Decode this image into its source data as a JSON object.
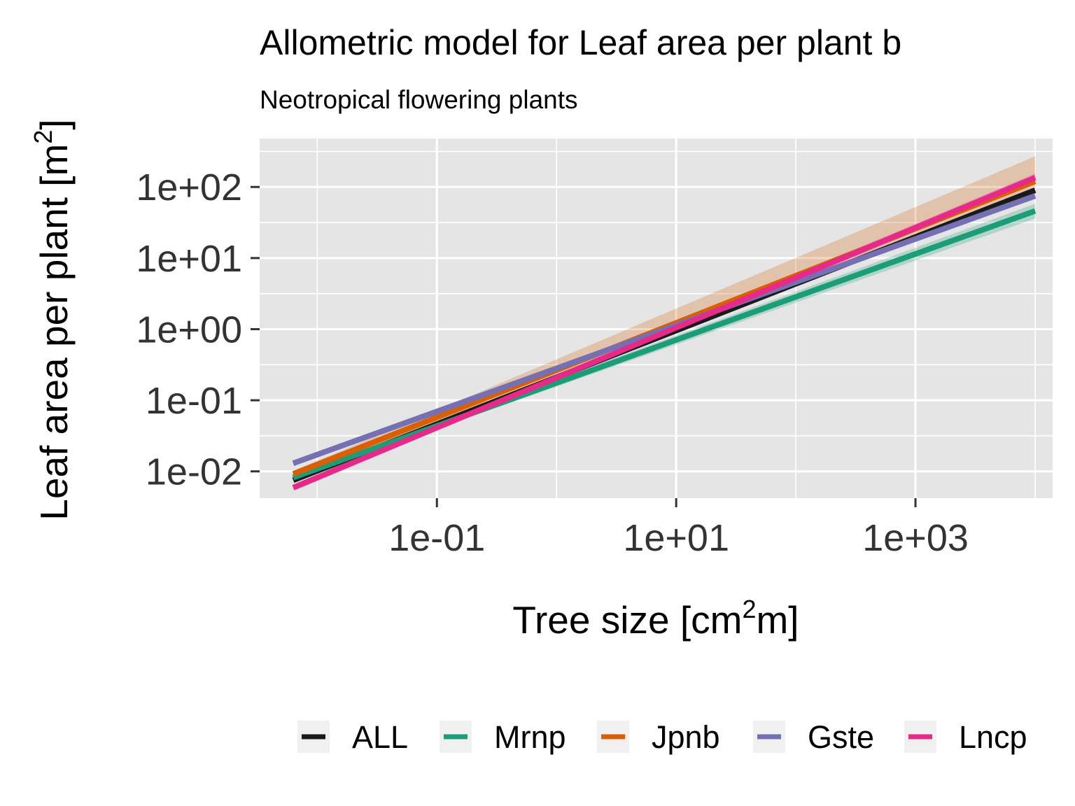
{
  "chart_data": {
    "type": "line",
    "title": "Allometric model for Leaf area per plant b",
    "subtitle": "Neotropical flowering plants",
    "xlabel": {
      "main": "Tree size [cm",
      "sup": "2",
      "tail": "m]"
    },
    "ylabel": {
      "main": "Leaf area per plant [m",
      "sup": "2",
      "tail": "]"
    },
    "x_scale": "log10",
    "y_scale": "log10",
    "xlim": [
      0.0033,
      14000
    ],
    "ylim": [
      0.0042,
      480
    ],
    "x_ticks": [
      {
        "value": 0.1,
        "label": "1e-01"
      },
      {
        "value": 10,
        "label": "1e+01"
      },
      {
        "value": 1000,
        "label": "1e+03"
      }
    ],
    "y_ticks": [
      {
        "value": 0.01,
        "label": "1e-02"
      },
      {
        "value": 0.1,
        "label": "1e-01"
      },
      {
        "value": 1,
        "label": "1e+00"
      },
      {
        "value": 10,
        "label": "1e+01"
      },
      {
        "value": 100,
        "label": "1e+02"
      }
    ],
    "grid": true,
    "legend_position": "bottom",
    "series": [
      {
        "name": "ALL",
        "color": "#1a1a1a",
        "x": [
          0.0063,
          10000
        ],
        "y": [
          0.0075,
          90
        ],
        "band": null
      },
      {
        "name": "Mrnp",
        "color": "#1b9e77",
        "x": [
          0.0063,
          10000
        ],
        "y": [
          0.0082,
          46
        ],
        "band": {
          "lower": [
            0.0078,
            36
          ],
          "upper": [
            0.0086,
            58
          ]
        }
      },
      {
        "name": "Jpnb",
        "color": "#d95f02",
        "x": [
          0.0063,
          10000
        ],
        "y": [
          0.0092,
          120
        ],
        "band": {
          "lower": [
            0.0084,
            85
          ],
          "upper": [
            0.0101,
            270
          ]
        }
      },
      {
        "name": "Gste",
        "color": "#7570b3",
        "x": [
          0.0063,
          10000
        ],
        "y": [
          0.013,
          75
        ],
        "band": {
          "lower": [
            0.012,
            68
          ],
          "upper": [
            0.014,
            84
          ]
        }
      },
      {
        "name": "Lncp",
        "color": "#e7298a",
        "x": [
          0.0063,
          10000
        ],
        "y": [
          0.0059,
          135
        ],
        "band": {
          "lower": [
            0.0055,
            118
          ],
          "upper": [
            0.0063,
            155
          ]
        }
      }
    ]
  }
}
